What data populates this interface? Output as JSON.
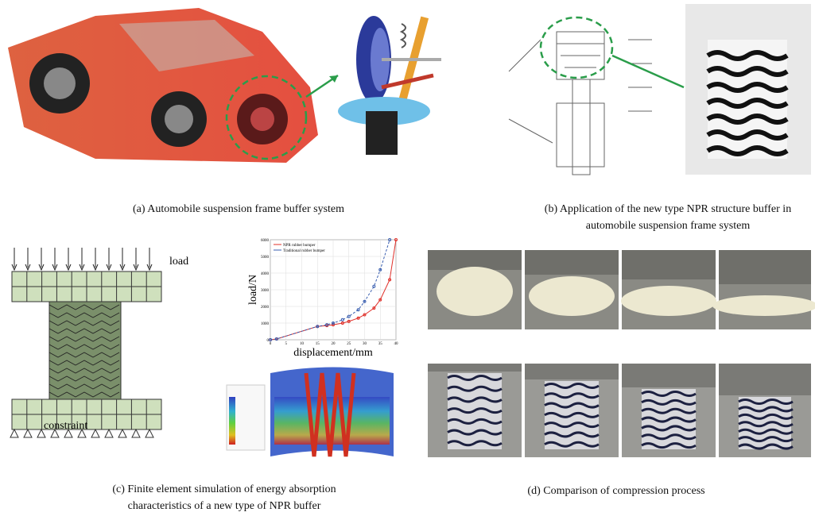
{
  "captions": {
    "a": "(a) Automobile suspension frame buffer system",
    "b_line1": "(b) Application of the new type NPR structure buffer in",
    "b_line2": "automobile suspension frame system",
    "c_line1": "(c) Finite element simulation of energy absorption",
    "c_line2": "characteristics of a new type of NPR buffer",
    "d": "(d) Comparison of compression process"
  },
  "fe_model": {
    "load_label": "load",
    "constraint_label": "constraint"
  },
  "chart_data": {
    "type": "line",
    "xlabel": "displacement/mm",
    "ylabel": "load/N",
    "xlim": [
      0,
      40
    ],
    "ylim": [
      0,
      6000
    ],
    "xticks": [
      0,
      5,
      10,
      15,
      20,
      25,
      30,
      35,
      40
    ],
    "yticks": [
      0,
      1000,
      2000,
      3000,
      4000,
      5000,
      6000
    ],
    "grid": true,
    "legend": "top-left",
    "series": [
      {
        "name": "NPR rubber bumper",
        "color": "#e0302a",
        "x": [
          0,
          2,
          15,
          18,
          20,
          23,
          25,
          28,
          30,
          33,
          35,
          38,
          40
        ],
        "values": [
          0,
          50,
          800,
          850,
          900,
          1000,
          1100,
          1300,
          1500,
          1900,
          2400,
          3600,
          6000
        ]
      },
      {
        "name": "Traditional rubber bumper",
        "color": "#3a5fb0",
        "x": [
          0,
          2,
          15,
          18,
          20,
          23,
          25,
          28,
          30,
          33,
          35,
          38
        ],
        "values": [
          0,
          50,
          800,
          900,
          1000,
          1200,
          1400,
          1800,
          2300,
          3200,
          4200,
          6000
        ]
      }
    ]
  }
}
